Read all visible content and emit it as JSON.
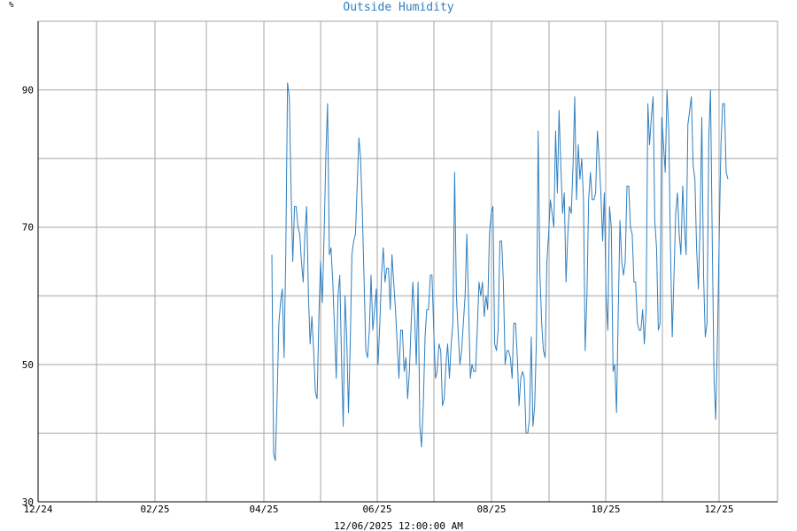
{
  "chart_data": {
    "type": "line",
    "title": "Outside Humidity",
    "ylabel": "%",
    "xlabel": "12/06/2025 12:00:00 AM",
    "ylim": [
      30,
      100
    ],
    "yticks": [
      30,
      50,
      70,
      90
    ],
    "xticks": [
      "12/24",
      "02/25",
      "04/25",
      "06/25",
      "08/25",
      "10/25",
      "12/25"
    ],
    "grid": true,
    "line_color": "#2f7fbf",
    "series": [
      {
        "values": [
          66,
          37,
          36,
          45,
          56,
          59,
          61,
          51,
          66,
          91,
          89,
          76,
          65,
          73,
          73,
          70,
          69,
          65,
          62,
          69,
          73,
          60,
          53,
          57,
          52,
          46,
          45,
          57,
          65,
          59,
          69,
          80,
          88,
          66,
          67,
          62,
          55,
          48,
          60,
          63,
          51,
          41,
          60,
          54,
          43,
          53,
          66,
          68,
          69,
          76,
          83,
          80,
          72,
          62,
          52,
          51,
          55,
          63,
          55,
          58,
          61,
          50,
          56,
          63,
          67,
          62,
          64,
          64,
          58,
          66,
          62,
          58,
          53,
          48,
          55,
          55,
          49,
          51,
          45,
          49,
          56,
          62,
          57,
          50,
          62,
          41,
          38,
          44,
          54,
          58,
          58,
          63,
          63,
          55,
          48,
          49,
          53,
          52,
          44,
          45,
          50,
          53,
          48,
          53,
          56,
          78,
          60,
          55,
          50,
          52,
          56,
          60,
          69,
          59,
          48,
          50,
          49,
          49,
          55,
          62,
          60,
          62,
          57,
          60,
          58,
          69,
          72,
          73,
          53,
          52,
          55,
          68,
          68,
          62,
          50,
          52,
          52,
          51,
          48,
          56,
          56,
          51,
          44,
          48,
          49,
          48,
          40,
          40,
          42,
          54,
          41,
          44,
          54,
          84,
          63,
          56,
          52,
          51,
          65,
          69,
          74,
          72,
          70,
          84,
          75,
          87,
          79,
          72,
          75,
          62,
          69,
          73,
          72,
          79,
          89,
          74,
          82,
          77,
          80,
          74,
          52,
          60,
          74,
          78,
          74,
          74,
          75,
          84,
          80,
          75,
          68,
          75,
          60,
          55,
          73,
          70,
          49,
          50,
          43,
          58,
          71,
          65,
          63,
          65,
          76,
          76,
          70,
          69,
          62,
          62,
          56,
          55,
          55,
          58,
          53,
          58,
          88,
          82,
          86,
          89,
          71,
          67,
          55,
          56,
          86,
          82,
          78,
          90,
          84,
          67,
          54,
          63,
          72,
          75,
          69,
          66,
          76,
          70,
          66,
          85,
          87,
          89,
          79,
          77,
          67,
          61,
          70,
          86,
          63,
          54,
          56,
          83,
          90,
          68,
          48,
          42,
          54,
          69,
          82,
          88,
          88,
          78,
          77
        ]
      }
    ]
  }
}
